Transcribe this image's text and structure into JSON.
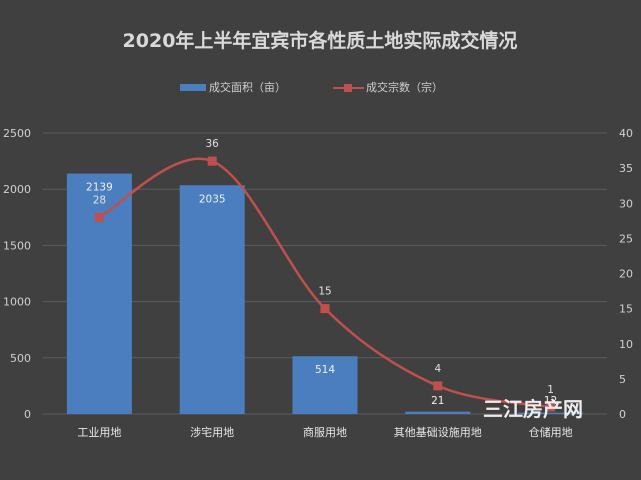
{
  "chart_data": {
    "type": "bar",
    "title": "2020年上半年宜宾市各性质土地实际成交情况",
    "categories": [
      "工业用地",
      "涉宅用地",
      "商服用地",
      "其他基础设施用地",
      "仓储用地"
    ],
    "series": [
      {
        "name": "成交面积（亩）",
        "type": "bar",
        "axis": "left",
        "values": [
          2139,
          2035,
          514,
          21,
          12
        ]
      },
      {
        "name": "成交宗数（宗）",
        "type": "line",
        "smooth": true,
        "axis": "right",
        "values": [
          28,
          36,
          15,
          4,
          1
        ]
      }
    ],
    "left_axis": {
      "min": 0,
      "max": 2500,
      "ticks": [
        0,
        500,
        1000,
        1500,
        2000,
        2500
      ]
    },
    "right_axis": {
      "min": 0,
      "max": 40,
      "ticks": [
        0,
        5,
        10,
        15,
        20,
        25,
        30,
        35,
        40
      ]
    },
    "grid": true,
    "legend": "top",
    "colors": {
      "background": "#404040",
      "bar": "#4a7ebf",
      "line": "#c0504d",
      "grid": "#5c5c5c",
      "text": "#d0d0d0"
    }
  },
  "watermark": "三江房产网"
}
